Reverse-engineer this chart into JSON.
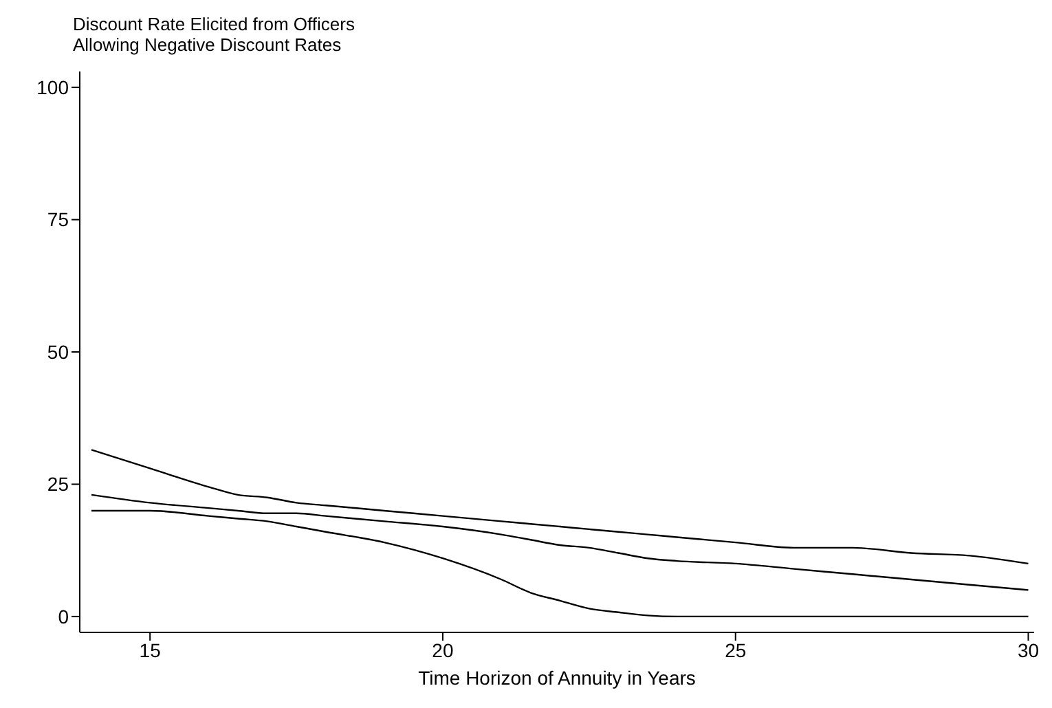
{
  "chart_data": {
    "type": "line",
    "title": "Discount Rate Elicited from Officers",
    "subtitle": "Allowing Negative Discount Rates",
    "xlabel": "Time Horizon of Annuity in Years",
    "x": [
      14,
      15,
      16,
      16.5,
      17,
      17.5,
      18,
      19,
      20,
      21,
      21.5,
      22,
      22.5,
      23,
      23.5,
      24,
      25,
      26,
      27,
      28,
      29,
      30
    ],
    "series": [
      {
        "color": "#000000",
        "values": [
          31.5,
          28,
          24.5,
          23,
          22.5,
          21.5,
          21,
          20,
          19,
          18,
          17.5,
          17,
          16.5,
          16,
          15.5,
          15,
          14,
          13,
          13,
          12,
          11.5,
          10
        ]
      },
      {
        "color": "#000000",
        "values": [
          23,
          21.5,
          20.5,
          20,
          19.5,
          19.5,
          19,
          18,
          17,
          15.5,
          14.5,
          13.5,
          13,
          12,
          11,
          10.5,
          10,
          9,
          8,
          7,
          6,
          5
        ]
      },
      {
        "color": "#000000",
        "values": [
          20,
          20,
          19,
          18.5,
          18,
          17,
          16,
          14,
          11,
          7,
          4.5,
          3,
          1.5,
          0.8,
          0.2,
          0,
          0,
          0,
          0,
          0,
          0,
          0
        ]
      }
    ],
    "xlim": [
      13.8,
      30.1
    ],
    "xticks": [
      15,
      20,
      25,
      30
    ],
    "ylim": [
      -3,
      103
    ],
    "yticks": [
      0,
      25,
      50,
      75,
      100
    ],
    "grid": false,
    "legend": false,
    "marker": "none",
    "line_style": "solid"
  }
}
